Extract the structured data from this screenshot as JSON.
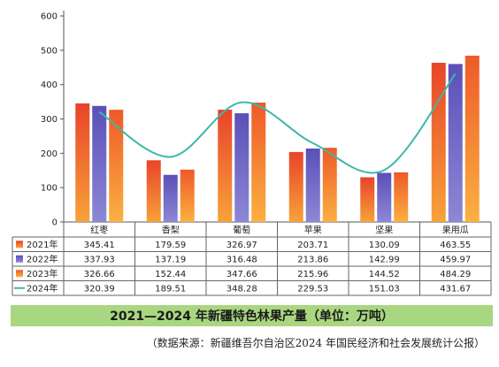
{
  "chart_data": {
    "type": "bar",
    "title": "2021—2024 年新疆特色林果产量（单位：万吨）",
    "source": "（数据来源：新疆维吾尔自治区2024 年国民经济和社会发展统计公报）",
    "categories": [
      "红枣",
      "香梨",
      "葡萄",
      "苹果",
      "坚果",
      "果用瓜"
    ],
    "ylim": [
      0,
      600
    ],
    "yticks": [
      0,
      100,
      200,
      300,
      400,
      500,
      600
    ],
    "grid": false,
    "series": [
      {
        "name": "2021年",
        "type": "bar",
        "values": [
          345.41,
          179.59,
          326.97,
          203.71,
          130.09,
          463.55
        ],
        "color_top": "#e8442a",
        "color_bottom": "#f7a23a"
      },
      {
        "name": "2022年",
        "type": "bar",
        "values": [
          337.93,
          137.19,
          316.48,
          213.86,
          142.99,
          459.97
        ],
        "color_top": "#5a50b8",
        "color_bottom": "#8d87d6"
      },
      {
        "name": "2023年",
        "type": "bar",
        "values": [
          326.66,
          152.44,
          347.66,
          215.96,
          144.52,
          484.29
        ],
        "color_top": "#ee5a28",
        "color_bottom": "#fbb042"
      },
      {
        "name": "2024年",
        "type": "line",
        "values": [
          320.39,
          189.51,
          348.28,
          229.53,
          151.03,
          431.67
        ],
        "color": "#3bb8a8"
      }
    ]
  }
}
